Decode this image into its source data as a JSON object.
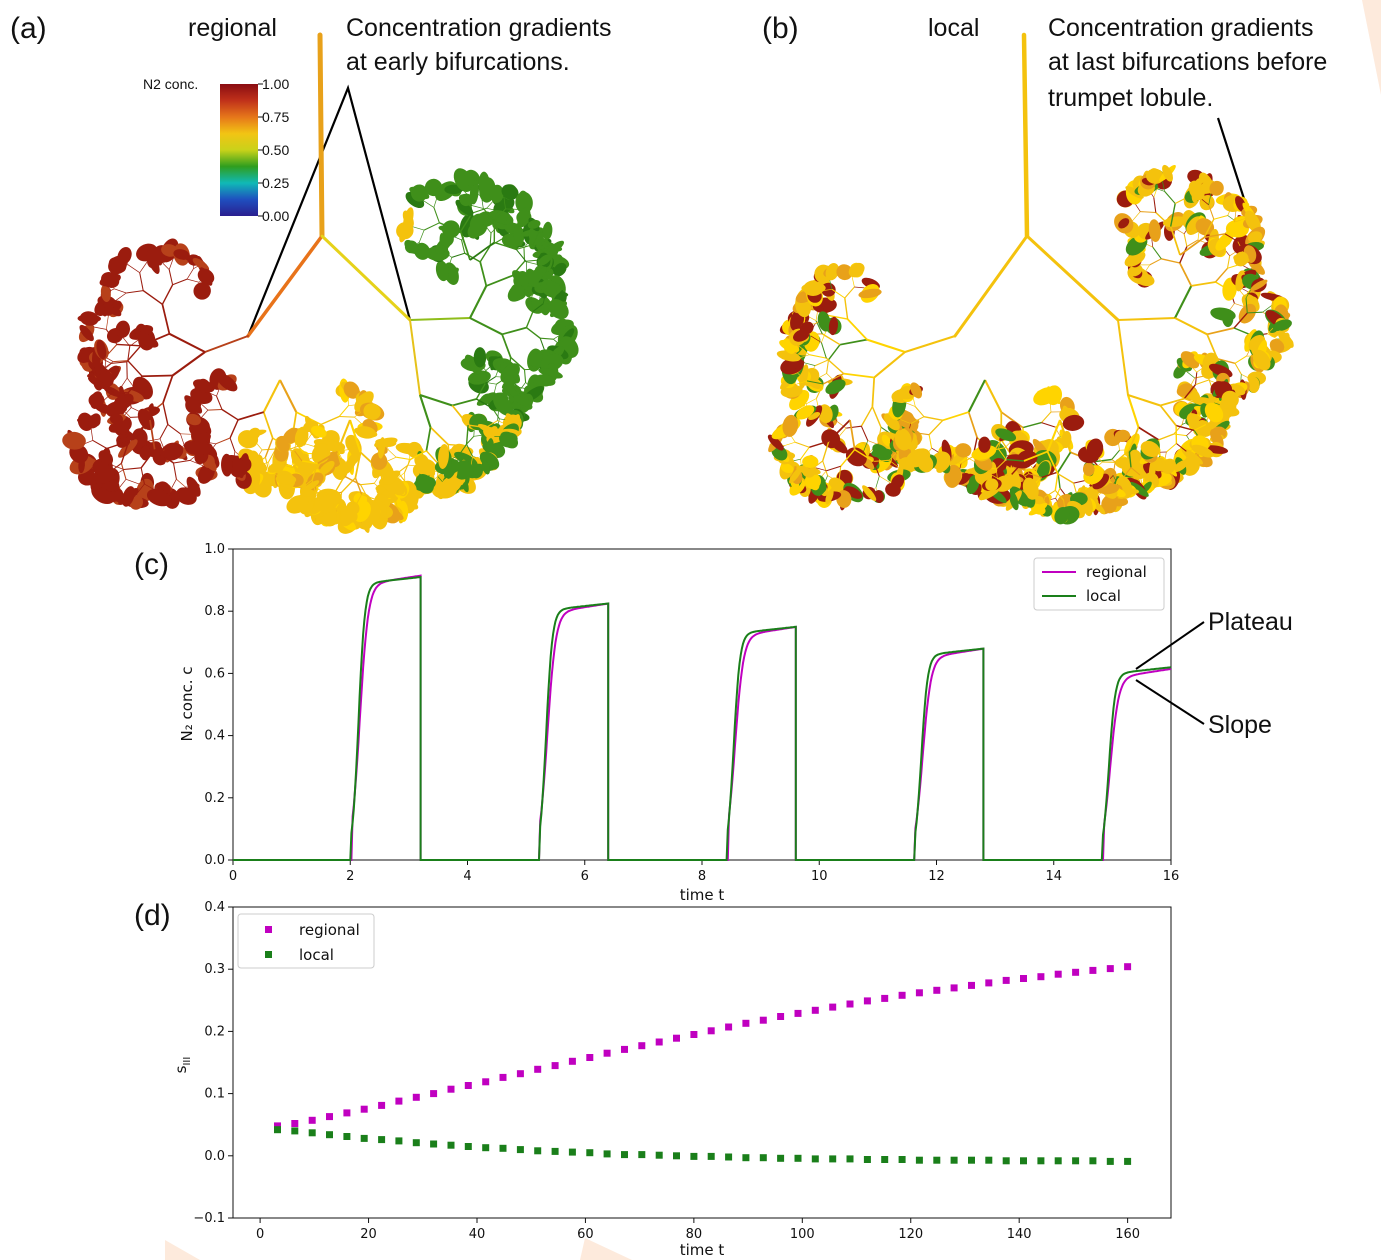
{
  "panels": {
    "a": {
      "label": "(a)",
      "title": "regional",
      "annotation_lines": [
        "Concentration gradients",
        "at early bifurcations."
      ]
    },
    "b": {
      "label": "(b)",
      "title": "local",
      "annotation_lines": [
        "Concentration gradients",
        "at last bifurcations before",
        "trumpet lobule."
      ]
    },
    "c": {
      "label": "(c)"
    },
    "d": {
      "label": "(d)"
    }
  },
  "colorbar": {
    "title": "N2 conc.",
    "ticks": [
      "1.00",
      "0.75",
      "0.50",
      "0.25",
      "0.00"
    ],
    "colormap": [
      "#8a0d12",
      "#c0311a",
      "#e6761a",
      "#f2c414",
      "#c9d21a",
      "#2f9e1e",
      "#10b9b6",
      "#1f4fbf",
      "#2a1f8f"
    ]
  },
  "colors": {
    "regional": "#c000c0",
    "local": "#1a7f1a",
    "dark_red": "#9b1c0e",
    "yellow": "#f4c20d",
    "orange": "#e8a11a",
    "green": "#3f8f1a",
    "watermark": "#fbdcc4"
  },
  "chart_data": [
    {
      "type": "line",
      "panel": "(c)",
      "xlabel": "time t",
      "ylabel": "N₂ conc. c",
      "xlim": [
        0,
        16
      ],
      "ylim": [
        0,
        1.0
      ],
      "xticks": [
        "0",
        "2",
        "4",
        "6",
        "8",
        "10",
        "12",
        "14",
        "16"
      ],
      "yticks": [
        "0.0",
        "0.2",
        "0.4",
        "0.6",
        "0.8",
        "1.0"
      ],
      "legend_position": "top-right",
      "pulses": [
        {
          "start": 2.0,
          "end": 3.2,
          "regional_plateau": 0.9,
          "local_plateau": 0.905
        },
        {
          "start": 5.2,
          "end": 6.4,
          "regional_plateau": 0.81,
          "local_plateau": 0.82
        },
        {
          "start": 8.4,
          "end": 9.6,
          "regional_plateau": 0.735,
          "local_plateau": 0.745
        },
        {
          "start": 11.6,
          "end": 12.8,
          "regional_plateau": 0.665,
          "local_plateau": 0.675
        },
        {
          "start": 14.8,
          "end": 16.0,
          "regional_plateau": 0.6,
          "local_plateau": 0.615
        }
      ],
      "series": [
        {
          "name": "regional",
          "color": "#c000c0"
        },
        {
          "name": "local",
          "color": "#1a7f1a"
        }
      ],
      "annotations": [
        "Plateau",
        "Slope"
      ]
    },
    {
      "type": "scatter",
      "panel": "(d)",
      "xlabel": "time t",
      "ylabel": "s_III",
      "xlim": [
        -5,
        168
      ],
      "ylim": [
        -0.1,
        0.4
      ],
      "xticks": [
        "0",
        "20",
        "40",
        "60",
        "80",
        "100",
        "120",
        "140",
        "160"
      ],
      "yticks": [
        "−0.1",
        "0.0",
        "0.1",
        "0.2",
        "0.3",
        "0.4"
      ],
      "legend_position": "top-left",
      "x": [
        3.2,
        6.4,
        9.6,
        12.8,
        16.0,
        19.2,
        22.4,
        25.6,
        28.8,
        32.0,
        35.2,
        38.4,
        41.6,
        44.8,
        48.0,
        51.2,
        54.4,
        57.6,
        60.8,
        64.0,
        67.2,
        70.4,
        73.6,
        76.8,
        80.0,
        83.2,
        86.4,
        89.6,
        92.8,
        96.0,
        99.2,
        102.4,
        105.6,
        108.8,
        112.0,
        115.2,
        118.4,
        121.6,
        124.8,
        128.0,
        131.2,
        134.4,
        137.6,
        140.8,
        144.0,
        147.2,
        150.4,
        153.6,
        156.8,
        160.0
      ],
      "series": [
        {
          "name": "regional",
          "color": "#c000c0",
          "values": [
            0.048,
            0.052,
            0.057,
            0.063,
            0.069,
            0.075,
            0.081,
            0.088,
            0.094,
            0.1,
            0.107,
            0.113,
            0.119,
            0.126,
            0.132,
            0.139,
            0.145,
            0.152,
            0.158,
            0.165,
            0.171,
            0.177,
            0.183,
            0.189,
            0.195,
            0.201,
            0.207,
            0.213,
            0.218,
            0.224,
            0.229,
            0.234,
            0.239,
            0.244,
            0.249,
            0.253,
            0.258,
            0.262,
            0.266,
            0.27,
            0.274,
            0.278,
            0.282,
            0.285,
            0.288,
            0.292,
            0.295,
            0.298,
            0.301,
            0.304
          ]
        },
        {
          "name": "local",
          "color": "#1a7f1a",
          "values": [
            0.042,
            0.04,
            0.037,
            0.034,
            0.031,
            0.028,
            0.026,
            0.024,
            0.021,
            0.019,
            0.017,
            0.015,
            0.013,
            0.012,
            0.01,
            0.008,
            0.007,
            0.006,
            0.005,
            0.003,
            0.002,
            0.002,
            0.001,
            0.0,
            -0.001,
            -0.001,
            -0.002,
            -0.003,
            -0.003,
            -0.004,
            -0.004,
            -0.005,
            -0.005,
            -0.005,
            -0.006,
            -0.006,
            -0.006,
            -0.007,
            -0.007,
            -0.007,
            -0.007,
            -0.007,
            -0.008,
            -0.008,
            -0.008,
            -0.008,
            -0.008,
            -0.008,
            -0.009,
            -0.009
          ]
        }
      ]
    }
  ]
}
